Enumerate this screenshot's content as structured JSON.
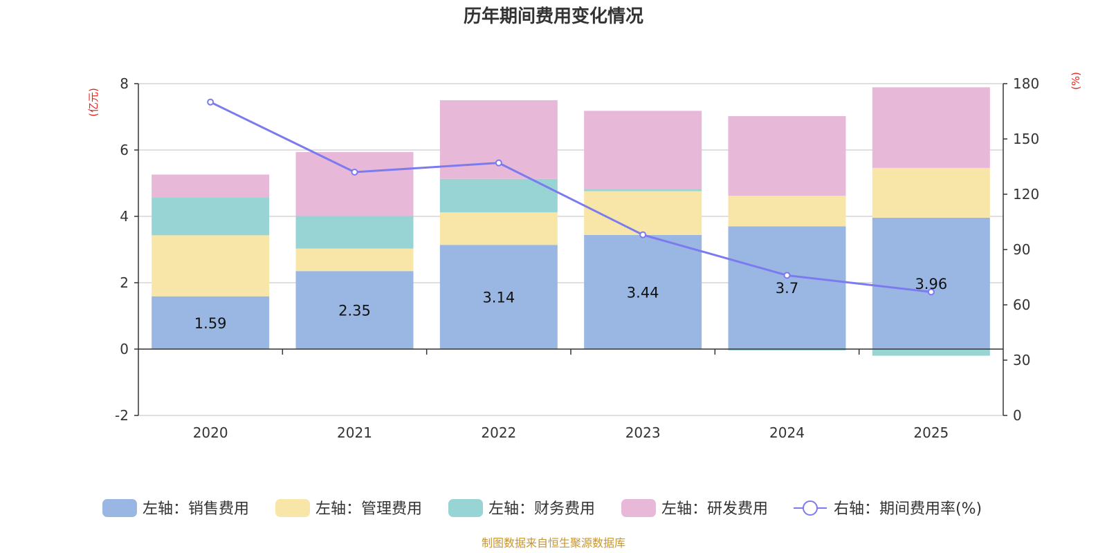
{
  "chart_data": {
    "type": "bar",
    "stacked": true,
    "title": "历年期间费用变化情况",
    "categories": [
      "2020",
      "2021",
      "2022",
      "2023",
      "2024",
      "2025"
    ],
    "left_axis": {
      "unit": "(亿元)",
      "ylim": [
        -2,
        8
      ],
      "ticks": [
        "-2",
        "0",
        "2",
        "4",
        "6",
        "8"
      ],
      "tick_values": [
        -2,
        0,
        2,
        4,
        6,
        8
      ]
    },
    "right_axis": {
      "unit": "(%)",
      "ylim": [
        0,
        180
      ],
      "ticks": [
        "0",
        "30",
        "60",
        "90",
        "120",
        "150",
        "180"
      ],
      "tick_values": [
        0,
        30,
        60,
        90,
        120,
        150,
        180
      ]
    },
    "series": [
      {
        "name": "左轴：销售费用",
        "axis": "left",
        "color": "#9ab6e2",
        "values": [
          1.59,
          2.35,
          3.14,
          3.44,
          3.7,
          3.96
        ],
        "labels": [
          "1.59",
          "2.35",
          "3.14",
          "3.44",
          "3.7",
          "3.96"
        ]
      },
      {
        "name": "左轴：管理费用",
        "axis": "left",
        "color": "#f8e6a8",
        "values": [
          1.84,
          0.68,
          0.98,
          1.32,
          0.92,
          1.5
        ]
      },
      {
        "name": "左轴：财务费用",
        "axis": "left",
        "color": "#98d4d4",
        "values": [
          1.15,
          0.98,
          1.01,
          0.07,
          -0.04,
          -0.2
        ]
      },
      {
        "name": "左轴：研发费用",
        "axis": "left",
        "color": "#e8b8d8",
        "values": [
          0.68,
          1.93,
          2.37,
          2.35,
          2.4,
          2.43
        ]
      },
      {
        "name": "右轴：期间费用率(%)",
        "axis": "right",
        "type": "line",
        "color": "#7b7bef",
        "values": [
          170,
          132,
          137,
          98,
          76,
          67
        ]
      }
    ],
    "source": "制图数据来自恒生聚源数据库"
  }
}
